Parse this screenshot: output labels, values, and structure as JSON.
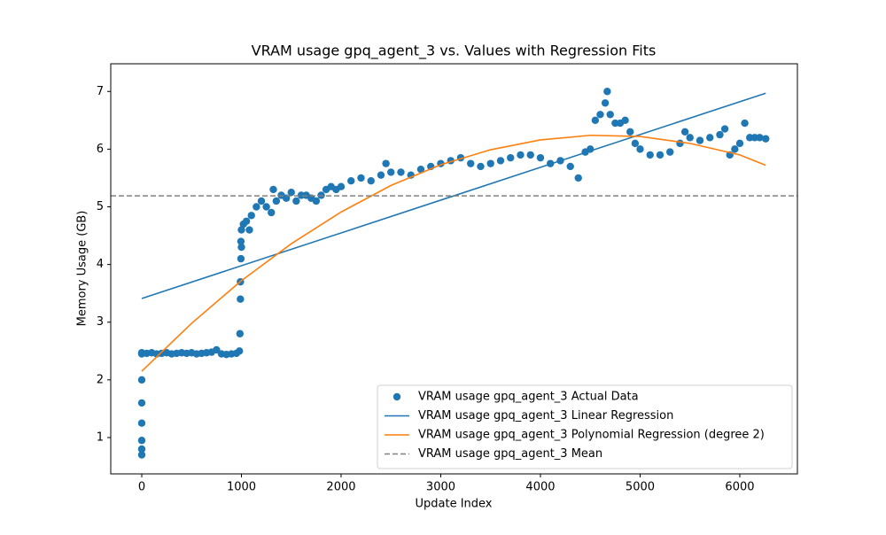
{
  "chart_data": {
    "type": "scatter",
    "title": "VRAM usage gpq_agent_3 vs. Values with Regression Fits",
    "x_label": "Update Index",
    "y_label": "Memory Usage (GB)",
    "xlim": [
      -311,
      6578
    ],
    "ylim": [
      0.37,
      7.48
    ],
    "xticks": [
      0,
      1000,
      2000,
      3000,
      4000,
      5000,
      6000
    ],
    "yticks": [
      1,
      2,
      3,
      4,
      5,
      6,
      7
    ],
    "legend": "lower right",
    "series": [
      {
        "name": "VRAM usage gpq_agent_3 Actual Data",
        "kind": "points",
        "color": "#1f77b4",
        "x": [
          0,
          0,
          0,
          0,
          0,
          0,
          0,
          0,
          50,
          100,
          150,
          200,
          250,
          300,
          350,
          400,
          450,
          500,
          550,
          600,
          650,
          700,
          750,
          800,
          850,
          900,
          950,
          980,
          985,
          990,
          990,
          995,
          995,
          1000,
          1000,
          1020,
          1050,
          1080,
          1100,
          1150,
          1200,
          1250,
          1300,
          1320,
          1350,
          1400,
          1450,
          1500,
          1550,
          1600,
          1650,
          1700,
          1750,
          1800,
          1850,
          1900,
          1950,
          2000,
          2100,
          2200,
          2300,
          2400,
          2450,
          2500,
          2600,
          2700,
          2800,
          2900,
          3000,
          3100,
          3200,
          3300,
          3400,
          3500,
          3600,
          3700,
          3800,
          3900,
          4000,
          4100,
          4200,
          4300,
          4380,
          4450,
          4500,
          4550,
          4600,
          4650,
          4670,
          4700,
          4750,
          4800,
          4850,
          4900,
          4950,
          5000,
          5100,
          5200,
          5300,
          5400,
          5450,
          5500,
          5600,
          5700,
          5800,
          5850,
          5900,
          5950,
          6000,
          6050,
          6100,
          6150,
          6200,
          6260
        ],
        "values": [
          0.7,
          0.8,
          0.95,
          1.25,
          1.6,
          2.0,
          2.45,
          2.47,
          2.46,
          2.47,
          2.45,
          2.46,
          2.47,
          2.45,
          2.46,
          2.47,
          2.46,
          2.47,
          2.45,
          2.46,
          2.47,
          2.48,
          2.52,
          2.45,
          2.44,
          2.45,
          2.46,
          2.5,
          2.8,
          3.4,
          3.7,
          4.1,
          4.4,
          4.3,
          4.6,
          4.7,
          4.75,
          4.6,
          4.85,
          5.0,
          5.1,
          5.0,
          4.9,
          5.3,
          5.1,
          5.2,
          5.15,
          5.25,
          5.1,
          5.2,
          5.2,
          5.15,
          5.1,
          5.2,
          5.3,
          5.35,
          5.3,
          5.35,
          5.45,
          5.5,
          5.45,
          5.55,
          5.75,
          5.6,
          5.6,
          5.55,
          5.65,
          5.7,
          5.75,
          5.8,
          5.85,
          5.75,
          5.7,
          5.75,
          5.8,
          5.85,
          5.9,
          5.9,
          5.85,
          5.75,
          5.8,
          5.7,
          5.5,
          5.95,
          6.0,
          6.5,
          6.6,
          6.8,
          7.0,
          6.6,
          6.45,
          6.45,
          6.5,
          6.3,
          6.1,
          6.0,
          5.9,
          5.9,
          5.95,
          6.1,
          6.3,
          6.2,
          6.15,
          6.2,
          6.25,
          6.35,
          5.9,
          6.0,
          6.1,
          6.45,
          6.2,
          6.2,
          6.2,
          6.18
        ]
      },
      {
        "name": "VRAM usage gpq_agent_3 Linear Regression",
        "kind": "line",
        "color": "#1f77b4",
        "x": [
          0,
          6260
        ],
        "values": [
          3.41,
          6.97
        ]
      },
      {
        "name": "VRAM usage gpq_agent_3 Polynomial Regression (degree 2)",
        "kind": "line",
        "color": "#ff7f0e",
        "x": [
          0,
          500,
          1000,
          1500,
          2000,
          2500,
          3000,
          3500,
          4000,
          4500,
          5000,
          5500,
          6000,
          6260
        ],
        "values": [
          2.15,
          2.98,
          3.72,
          4.36,
          4.91,
          5.37,
          5.73,
          5.99,
          6.16,
          6.24,
          6.22,
          6.1,
          5.9,
          5.72
        ]
      },
      {
        "name": "VRAM usage gpq_agent_3 Mean",
        "kind": "hline",
        "color": "#808080",
        "dashed": true,
        "y": 5.19
      }
    ]
  }
}
